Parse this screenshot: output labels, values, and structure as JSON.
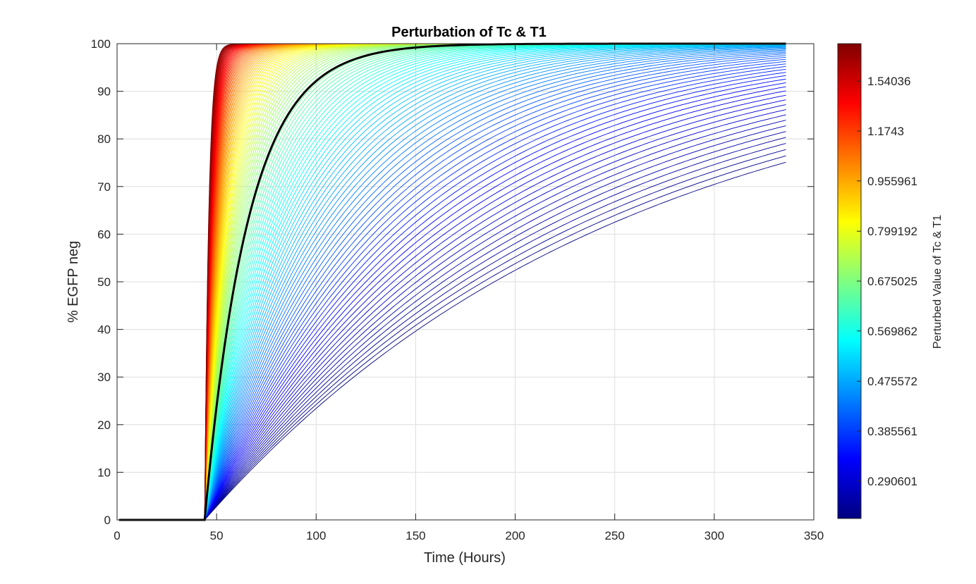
{
  "chart_data": {
    "type": "line",
    "title": "Perturbation of Tc & T1",
    "xlabel": "Time (Hours)",
    "ylabel": "% EGFP neg",
    "xlim": [
      0,
      350
    ],
    "ylim": [
      0,
      100
    ],
    "xticks": [
      0,
      50,
      100,
      150,
      200,
      250,
      300,
      350
    ],
    "yticks": [
      0,
      10,
      20,
      30,
      40,
      50,
      60,
      70,
      80,
      90,
      100
    ],
    "grid": true,
    "curve_family": {
      "count": 120,
      "onset_hours": 44,
      "end_hours": 336,
      "model": "100*(1-exp(-(t-onset)/tau))",
      "tau_range_hours": [
        2,
        210
      ]
    },
    "highlighted_series": {
      "color": "#000000",
      "tau_hours": 22
    },
    "colorbar": {
      "colormap": "jet",
      "label": "Perturbed Value of Tc & T1",
      "tick_labels": [
        "0.290601",
        "0.385561",
        "0.475572",
        "0.569862",
        "0.675025",
        "0.799192",
        "0.955961",
        "1.1743",
        "1.54036"
      ],
      "tick_fractions": [
        0.079,
        0.184,
        0.289,
        0.395,
        0.5,
        0.605,
        0.711,
        0.816,
        0.921
      ]
    }
  }
}
